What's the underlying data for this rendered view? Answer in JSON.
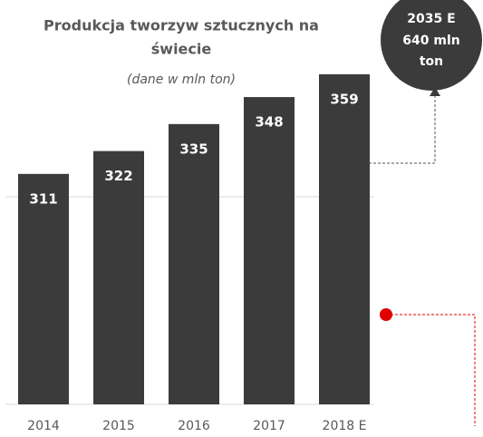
{
  "chart_data": {
    "type": "bar",
    "title": [
      "Produkcja tworzyw sztucznych na",
      "świecie"
    ],
    "subtitle": "(dane w mln ton)",
    "categories": [
      "2014",
      "2015",
      "2016",
      "2017",
      "2018 E"
    ],
    "values": [
      311,
      322,
      335,
      348,
      359
    ],
    "color": "#3b3b3b",
    "ylim": [
      200,
      370
    ],
    "yticks": [
      200,
      300
    ],
    "grid": true,
    "annotation": [
      "2035 E",
      "640 mln",
      "ton"
    ]
  }
}
